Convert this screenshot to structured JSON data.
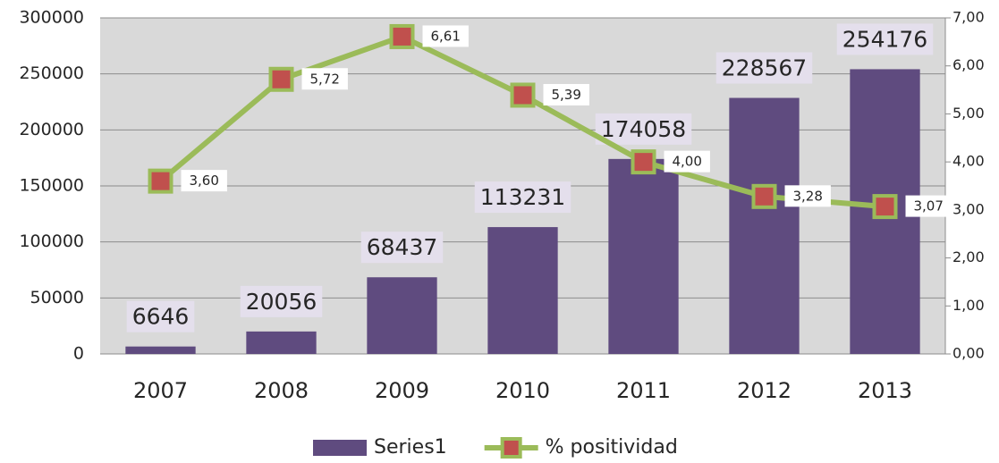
{
  "chart_data": {
    "type": "bar",
    "categories": [
      "2007",
      "2008",
      "2009",
      "2010",
      "2011",
      "2012",
      "2013"
    ],
    "series": [
      {
        "name": "Series1",
        "color": "#5f4b7f",
        "type": "bar",
        "values": [
          6646,
          20056,
          68437,
          113231,
          174058,
          228567,
          254176
        ]
      },
      {
        "name": "% positividad",
        "color": "#9bbb59",
        "marker_color": "#c0504d",
        "type": "line",
        "axis": "y2",
        "values": [
          3.6,
          5.72,
          6.61,
          5.39,
          4.0,
          3.28,
          3.07
        ],
        "value_labels": [
          "3,60",
          "5,72",
          "6,61",
          "5,39",
          "4,00",
          "3,28",
          "3,07"
        ]
      }
    ],
    "ylim": [
      0,
      300000
    ],
    "yticks": [
      0,
      50000,
      100000,
      150000,
      200000,
      250000,
      300000
    ],
    "y2lim": [
      0,
      7
    ],
    "y2ticks": [
      {
        "value": 0,
        "label": "0,00"
      },
      {
        "value": 1,
        "label": "1,00"
      },
      {
        "value": 2,
        "label": "2,00"
      },
      {
        "value": 3,
        "label": "3,00"
      },
      {
        "value": 4,
        "label": "4,00"
      },
      {
        "value": 5,
        "label": "5,00"
      },
      {
        "value": 6,
        "label": "6,00"
      },
      {
        "value": 7,
        "label": "7,00"
      }
    ],
    "grid": true,
    "legend": "bottom"
  }
}
